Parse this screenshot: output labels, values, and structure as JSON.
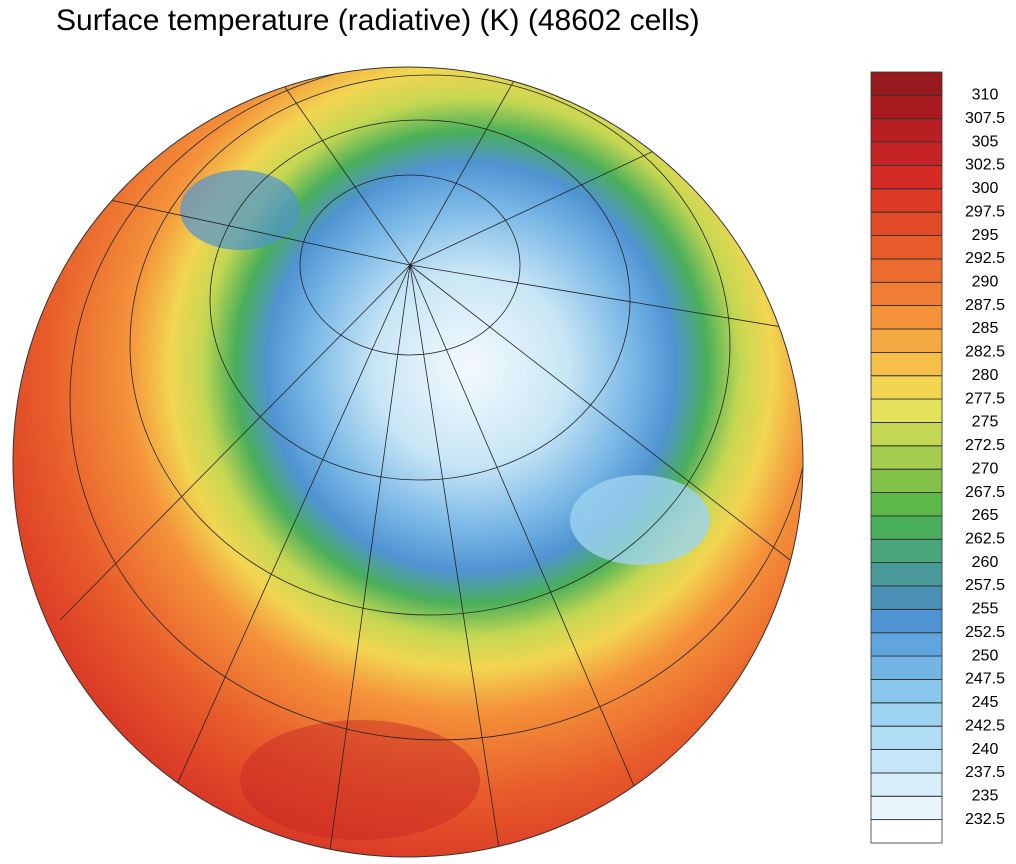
{
  "title": "Surface temperature (radiative) (K) (48602 cells)",
  "colorbar": {
    "levels": [
      232.5,
      235,
      237.5,
      240,
      242.5,
      245,
      247.5,
      250,
      252.5,
      255,
      257.5,
      260,
      262.5,
      265,
      267.5,
      270,
      272.5,
      275,
      277.5,
      280,
      282.5,
      285,
      287.5,
      290,
      292.5,
      295,
      297.5,
      300,
      302.5,
      305,
      307.5,
      310
    ],
    "colors": [
      "#ffffff",
      "#e8f4fb",
      "#d6eef9",
      "#c4e6f6",
      "#b0ddf3",
      "#9dd3f0",
      "#88c6ec",
      "#73b6e6",
      "#5fa5de",
      "#4f93d2",
      "#4a8fb5",
      "#4a9a9a",
      "#4aa57a",
      "#4aaf5a",
      "#5cb848",
      "#82c24a",
      "#a4cc4e",
      "#c4d752",
      "#e3e159",
      "#f2d651",
      "#f6c048",
      "#f6a942",
      "#f4923a",
      "#f07d33",
      "#ec6b2e",
      "#e75a2a",
      "#e24a27",
      "#dc3a25",
      "#d42c24",
      "#c62424",
      "#b71f22",
      "#a71b1f",
      "#971a1c"
    ]
  }
}
